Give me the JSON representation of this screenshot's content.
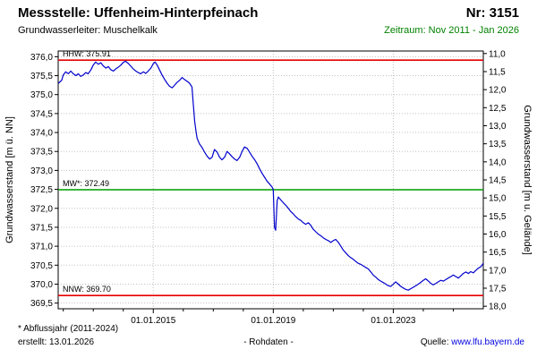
{
  "header": {
    "title": "Messstelle: Uffenheim-Hinterpfeinach",
    "number": "Nr: 3151",
    "aquifer": "Grundwasserleiter: Muschelkalk",
    "period": "Zeitraum: Nov 2011 - Jan 2026"
  },
  "footer": {
    "note": "* Abflussjahr (2011-2024)",
    "created": "erstellt: 13.01.2026",
    "datatype": "- Rohdaten -",
    "source_label": "Quelle:",
    "source_link": "www.lfu.bayern.de"
  },
  "colors": {
    "period_text": "#008000",
    "link": "#0000dd",
    "series": "#0000cc",
    "ref_red": "#e60000",
    "ref_green": "#00a000",
    "grid": "#c0c0c0"
  },
  "chart_data": {
    "type": "line",
    "title": "Grundwasserstand Messstelle Uffenheim-Hinterpfeinach (Rohdaten)",
    "ylabel_left": "Grundwasserstand [m ü. NN]",
    "ylabel_right": "Grundwasserstand [m u. Gelände]",
    "x_range": [
      2011.83,
      2026.0
    ],
    "y_left_range": [
      369.35,
      376.15
    ],
    "y_right_range": [
      10.93,
      18.07
    ],
    "grid": true,
    "left_ticks": [
      {
        "v": 369.5,
        "label": "369,5"
      },
      {
        "v": 370.0,
        "label": "370,0"
      },
      {
        "v": 370.5,
        "label": "370,5"
      },
      {
        "v": 371.0,
        "label": "371,0"
      },
      {
        "v": 371.5,
        "label": "371,5"
      },
      {
        "v": 372.0,
        "label": "372,0"
      },
      {
        "v": 372.5,
        "label": "372,5"
      },
      {
        "v": 373.0,
        "label": "373,0"
      },
      {
        "v": 373.5,
        "label": "373,5"
      },
      {
        "v": 374.0,
        "label": "374,0"
      },
      {
        "v": 374.5,
        "label": "374,5"
      },
      {
        "v": 375.0,
        "label": "375,0"
      },
      {
        "v": 375.5,
        "label": "375,5"
      },
      {
        "v": 376.0,
        "label": "376,0"
      }
    ],
    "right_ticks": [
      {
        "v": 11.0,
        "label": "11,0"
      },
      {
        "v": 11.5,
        "label": "11,5"
      },
      {
        "v": 12.0,
        "label": "12,0"
      },
      {
        "v": 12.5,
        "label": "12,5"
      },
      {
        "v": 13.0,
        "label": "13,0"
      },
      {
        "v": 13.5,
        "label": "13,5"
      },
      {
        "v": 14.0,
        "label": "14,0"
      },
      {
        "v": 14.5,
        "label": "14,5"
      },
      {
        "v": 15.0,
        "label": "15,0"
      },
      {
        "v": 15.5,
        "label": "15,5"
      },
      {
        "v": 16.0,
        "label": "16,0"
      },
      {
        "v": 16.5,
        "label": "16,5"
      },
      {
        "v": 17.0,
        "label": "17,0"
      },
      {
        "v": 17.5,
        "label": "17,5"
      },
      {
        "v": 18.0,
        "label": "18,0"
      }
    ],
    "x_ticks": [
      {
        "t": 2015.0,
        "label": "01.01.2015"
      },
      {
        "t": 2019.0,
        "label": "01.01.2019"
      },
      {
        "t": 2023.0,
        "label": "01.01.2023"
      }
    ],
    "x_minor_ticks": [
      2012,
      2013,
      2014,
      2016,
      2017,
      2018,
      2020,
      2021,
      2022,
      2024,
      2025
    ],
    "ref_lines": [
      {
        "id": "hhw",
        "label": "HHW: 375.91",
        "value": 375.91,
        "color": "#e60000"
      },
      {
        "id": "mw",
        "label": "MW*: 372.49",
        "value": 372.49,
        "color": "#00a000"
      },
      {
        "id": "nnw",
        "label": "NNW: 369.70",
        "value": 369.7,
        "color": "#e60000"
      }
    ],
    "series": [
      {
        "name": "Grundwasserstand (Rohdaten)",
        "color": "#0000cc",
        "x": [
          2011.84,
          2011.95,
          2012.0,
          2012.08,
          2012.17,
          2012.25,
          2012.33,
          2012.42,
          2012.5,
          2012.58,
          2012.67,
          2012.75,
          2012.83,
          2012.92,
          2013.0,
          2013.08,
          2013.17,
          2013.25,
          2013.33,
          2013.42,
          2013.5,
          2013.58,
          2013.67,
          2013.75,
          2013.83,
          2013.92,
          2014.0,
          2014.08,
          2014.17,
          2014.25,
          2014.33,
          2014.42,
          2014.5,
          2014.58,
          2014.67,
          2014.75,
          2014.83,
          2014.92,
          2015.0,
          2015.06,
          2015.13,
          2015.21,
          2015.29,
          2015.38,
          2015.46,
          2015.54,
          2015.63,
          2015.71,
          2015.79,
          2015.88,
          2015.96,
          2016.04,
          2016.13,
          2016.21,
          2016.29,
          2016.33,
          2016.38,
          2016.42,
          2016.46,
          2016.54,
          2016.63,
          2016.71,
          2016.79,
          2016.88,
          2016.96,
          2017.04,
          2017.13,
          2017.21,
          2017.29,
          2017.38,
          2017.46,
          2017.54,
          2017.63,
          2017.71,
          2017.79,
          2017.88,
          2017.96,
          2018.04,
          2018.13,
          2018.21,
          2018.29,
          2018.38,
          2018.46,
          2018.54,
          2018.63,
          2018.71,
          2018.79,
          2018.88,
          2018.96,
          2019.0,
          2019.04,
          2019.08,
          2019.13,
          2019.17,
          2019.25,
          2019.33,
          2019.42,
          2019.5,
          2019.58,
          2019.67,
          2019.75,
          2019.83,
          2019.92,
          2020.0,
          2020.08,
          2020.17,
          2020.25,
          2020.33,
          2020.42,
          2020.5,
          2020.58,
          2020.67,
          2020.75,
          2020.83,
          2020.92,
          2021.0,
          2021.08,
          2021.17,
          2021.25,
          2021.33,
          2021.42,
          2021.5,
          2021.58,
          2021.67,
          2021.75,
          2021.83,
          2021.92,
          2022.0,
          2022.08,
          2022.17,
          2022.25,
          2022.33,
          2022.42,
          2022.5,
          2022.58,
          2022.67,
          2022.75,
          2022.83,
          2022.92,
          2023.0,
          2023.08,
          2023.17,
          2023.25,
          2023.33,
          2023.42,
          2023.5,
          2023.58,
          2023.67,
          2023.75,
          2023.83,
          2023.92,
          2024.0,
          2024.08,
          2024.17,
          2024.25,
          2024.33,
          2024.42,
          2024.5,
          2024.58,
          2024.67,
          2024.75,
          2024.83,
          2024.92,
          2025.0,
          2025.08,
          2025.17,
          2025.25,
          2025.33,
          2025.42,
          2025.5,
          2025.58,
          2025.67,
          2025.75,
          2025.83,
          2025.92,
          2026.0
        ],
        "y": [
          375.3,
          375.38,
          375.52,
          375.6,
          375.55,
          375.62,
          375.55,
          375.5,
          375.55,
          375.48,
          375.52,
          375.58,
          375.55,
          375.65,
          375.78,
          375.86,
          375.8,
          375.84,
          375.76,
          375.7,
          375.74,
          375.66,
          375.62,
          375.68,
          375.72,
          375.78,
          375.85,
          375.88,
          375.82,
          375.75,
          375.68,
          375.62,
          375.58,
          375.55,
          375.6,
          375.56,
          375.62,
          375.7,
          375.82,
          375.86,
          375.78,
          375.65,
          375.52,
          375.4,
          375.3,
          375.22,
          375.18,
          375.25,
          375.32,
          375.38,
          375.45,
          375.4,
          375.35,
          375.3,
          375.2,
          374.8,
          374.3,
          374.05,
          373.85,
          373.7,
          373.6,
          373.48,
          373.38,
          373.3,
          373.35,
          373.55,
          373.48,
          373.35,
          373.28,
          373.35,
          373.5,
          373.44,
          373.36,
          373.3,
          373.26,
          373.35,
          373.5,
          373.62,
          373.58,
          373.48,
          373.38,
          373.28,
          373.18,
          373.05,
          372.92,
          372.82,
          372.72,
          372.64,
          372.56,
          372.5,
          371.5,
          371.42,
          372.2,
          372.3,
          372.22,
          372.15,
          372.08,
          372.0,
          371.92,
          371.85,
          371.78,
          371.72,
          371.68,
          371.62,
          371.58,
          371.62,
          371.55,
          371.45,
          371.38,
          371.32,
          371.28,
          371.22,
          371.18,
          371.15,
          371.1,
          371.15,
          371.18,
          371.1,
          371.0,
          370.9,
          370.82,
          370.75,
          370.7,
          370.65,
          370.6,
          370.55,
          370.52,
          370.48,
          370.44,
          370.4,
          370.32,
          370.24,
          370.18,
          370.12,
          370.08,
          370.04,
          370.0,
          369.96,
          369.94,
          370.0,
          370.06,
          370.0,
          369.94,
          369.9,
          369.86,
          369.84,
          369.88,
          369.92,
          369.96,
          370.0,
          370.05,
          370.1,
          370.14,
          370.08,
          370.02,
          369.98,
          370.02,
          370.06,
          370.1,
          370.08,
          370.12,
          370.16,
          370.2,
          370.24,
          370.2,
          370.16,
          370.22,
          370.28,
          370.32,
          370.28,
          370.33,
          370.3,
          370.36,
          370.42,
          370.46,
          370.55
        ]
      }
    ]
  }
}
